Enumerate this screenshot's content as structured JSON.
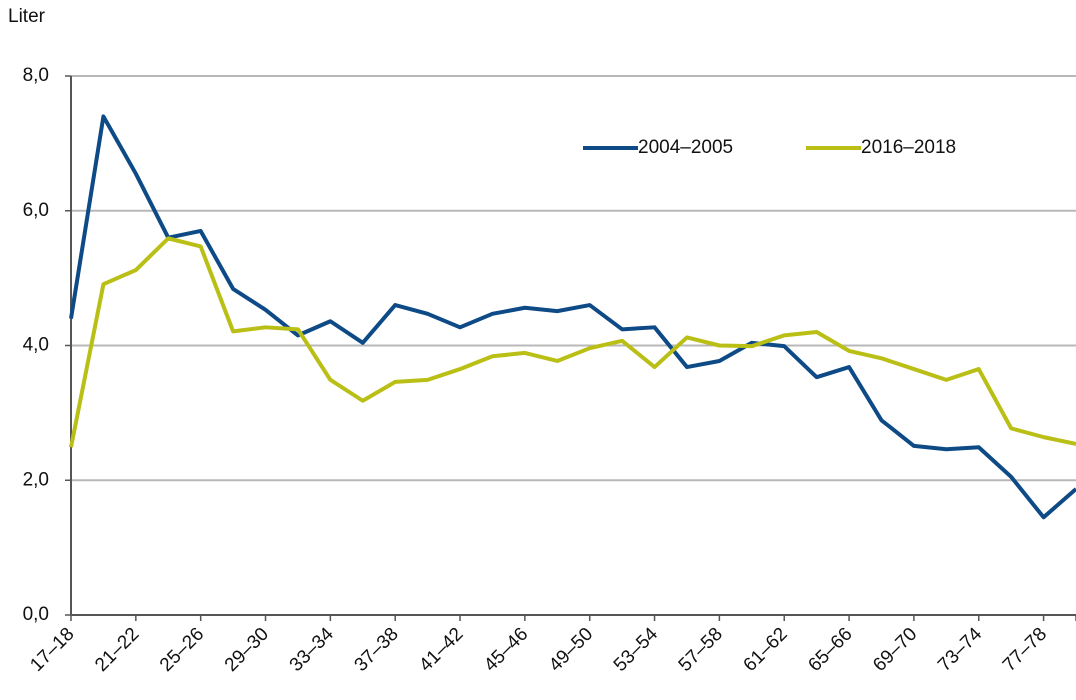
{
  "chart_data": {
    "type": "line",
    "y_label": "Liter",
    "categories": [
      "17–18",
      null,
      "21–22",
      null,
      "25–26",
      null,
      "29–30",
      null,
      "33–34",
      null,
      "37–38",
      null,
      "41–42",
      null,
      "45–46",
      null,
      "49–50",
      null,
      "53–54",
      null,
      "57–58",
      null,
      "61–62",
      null,
      "65–66",
      null,
      "69–70",
      null,
      "73–74",
      null,
      "77–78",
      null
    ],
    "series": [
      {
        "name": "2004–2005",
        "color": "#0d4a86",
        "values": [
          4.4,
          7.4,
          6.55,
          5.6,
          5.7,
          4.84,
          4.53,
          4.15,
          4.36,
          4.04,
          4.6,
          4.47,
          4.27,
          4.47,
          4.56,
          4.51,
          4.6,
          4.24,
          4.27,
          3.68,
          3.77,
          4.04,
          3.99,
          3.53,
          3.68,
          2.89,
          2.51,
          2.46,
          2.49,
          2.05,
          1.45,
          1.87
        ]
      },
      {
        "name": "2016–2018",
        "color": "#b9bf15",
        "values": [
          2.49,
          4.91,
          5.12,
          5.59,
          5.47,
          4.21,
          4.27,
          4.24,
          3.49,
          3.18,
          3.46,
          3.49,
          3.65,
          3.84,
          3.89,
          3.77,
          3.96,
          4.07,
          3.68,
          4.12,
          4.0,
          3.99,
          4.15,
          4.2,
          3.92,
          3.81,
          3.65,
          3.49,
          3.65,
          2.77,
          2.64,
          2.54
        ]
      }
    ],
    "ylim": [
      0,
      8
    ],
    "yticks": [
      {
        "value": 0,
        "label": "0,0"
      },
      {
        "value": 2,
        "label": "2,0"
      },
      {
        "value": 4,
        "label": "4,0"
      },
      {
        "value": 6,
        "label": "6,0"
      },
      {
        "value": 8,
        "label": "8,0"
      }
    ],
    "grid": true,
    "legend": "top-right"
  }
}
